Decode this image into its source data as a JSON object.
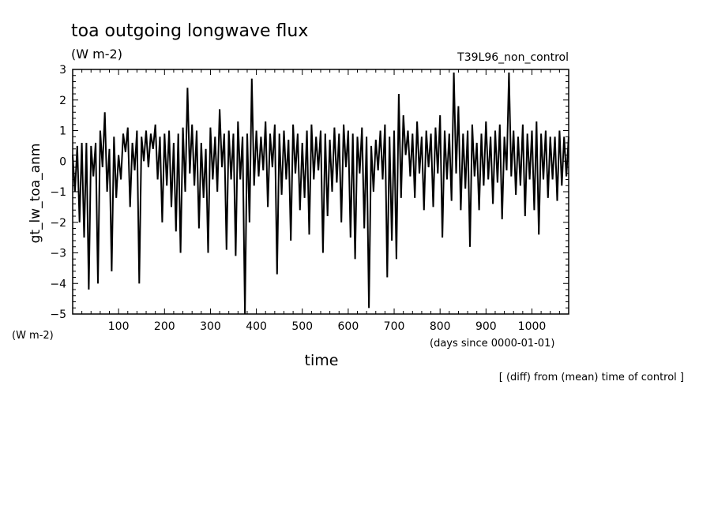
{
  "chart_data": {
    "type": "line",
    "title": "toa outgoing longwave flux",
    "title_units": "(W m-2)",
    "experiment": "T39L96_non_control",
    "ylabel": "gt_lw_toa_anm",
    "yunits": "(W m-2)",
    "xlabel": "time",
    "xunits": "(days since 0000-01-01)",
    "footnote": "[ (diff) from (mean) time of control ]",
    "xlim": [
      0,
      1080
    ],
    "ylim": [
      -5,
      3
    ],
    "xticks": [
      "100",
      "200",
      "300",
      "400",
      "500",
      "600",
      "700",
      "800",
      "900",
      "1000"
    ],
    "yticks": [
      "-5",
      "-4",
      "-3",
      "-2",
      "-1",
      "0",
      "1",
      "2",
      "3"
    ],
    "grid": false,
    "series": [
      {
        "x": [
          0,
          5,
          10,
          15,
          20,
          25,
          30,
          35,
          40,
          45,
          50,
          55,
          60,
          65,
          70,
          75,
          80,
          85,
          90,
          95,
          100,
          105,
          110,
          115,
          120,
          125,
          130,
          135,
          140,
          145,
          150,
          155,
          160,
          165,
          170,
          175,
          180,
          185,
          190,
          195,
          200,
          205,
          210,
          215,
          220,
          225,
          230,
          235,
          240,
          245,
          250,
          255,
          260,
          265,
          270,
          275,
          280,
          285,
          290,
          295,
          300,
          305,
          310,
          315,
          320,
          325,
          330,
          335,
          340,
          345,
          350,
          355,
          360,
          365,
          370,
          375,
          380,
          385,
          390,
          395,
          400,
          405,
          410,
          415,
          420,
          425,
          430,
          435,
          440,
          445,
          450,
          455,
          460,
          465,
          470,
          475,
          480,
          485,
          490,
          495,
          500,
          505,
          510,
          515,
          520,
          525,
          530,
          535,
          540,
          545,
          550,
          555,
          560,
          565,
          570,
          575,
          580,
          585,
          590,
          595,
          600,
          605,
          610,
          615,
          620,
          625,
          630,
          635,
          640,
          645,
          650,
          655,
          660,
          665,
          670,
          675,
          680,
          685,
          690,
          695,
          700,
          705,
          710,
          715,
          720,
          725,
          730,
          735,
          740,
          745,
          750,
          755,
          760,
          765,
          770,
          775,
          780,
          785,
          790,
          795,
          800,
          805,
          810,
          815,
          820,
          825,
          830,
          835,
          840,
          845,
          850,
          855,
          860,
          865,
          870,
          875,
          880,
          885,
          890,
          895,
          900,
          905,
          910,
          915,
          920,
          925,
          930,
          935,
          940,
          945,
          950,
          955,
          960,
          965,
          970,
          975,
          980,
          985,
          990,
          995,
          1000,
          1005,
          1010,
          1015,
          1020,
          1025,
          1030,
          1035,
          1040,
          1045,
          1050,
          1055,
          1060,
          1065,
          1070,
          1075,
          1080
        ],
        "values": [
          0.2,
          -1.0,
          0.5,
          -2.0,
          0.6,
          -2.5,
          0.6,
          -4.2,
          0.5,
          -0.5,
          0.6,
          -4.0,
          1.0,
          -0.2,
          1.6,
          -1.0,
          0.4,
          -3.6,
          0.8,
          -1.2,
          0.2,
          -0.6,
          0.9,
          0.3,
          1.1,
          -1.5,
          0.6,
          -0.3,
          1.0,
          -4.0,
          0.8,
          0.0,
          1.0,
          -0.2,
          0.9,
          0.4,
          1.2,
          -0.6,
          0.8,
          -2.0,
          0.9,
          -0.8,
          1.0,
          -1.5,
          0.6,
          -2.3,
          0.9,
          -3.0,
          1.1,
          -1.0,
          2.4,
          -0.4,
          1.2,
          -0.8,
          1.0,
          -2.2,
          0.6,
          -1.2,
          0.4,
          -3.0,
          1.1,
          -0.6,
          0.8,
          -1.0,
          1.7,
          -0.2,
          0.9,
          -2.9,
          1.0,
          -0.6,
          0.9,
          -3.1,
          1.3,
          -0.6,
          0.8,
          -5.0,
          0.9,
          -2.0,
          2.7,
          -0.8,
          1.0,
          -0.5,
          0.8,
          -0.3,
          1.3,
          -1.5,
          0.9,
          -0.2,
          1.2,
          -3.7,
          0.9,
          -1.1,
          1.0,
          -0.6,
          0.7,
          -2.6,
          1.2,
          -0.4,
          0.9,
          -1.6,
          0.6,
          -1.2,
          1.0,
          -2.4,
          1.2,
          -0.6,
          0.8,
          -0.3,
          1.0,
          -3.0,
          0.9,
          -1.8,
          0.7,
          -1.0,
          1.1,
          -0.7,
          0.9,
          -2.0,
          1.2,
          -0.2,
          1.0,
          -2.5,
          0.9,
          -3.2,
          0.8,
          -0.4,
          1.1,
          -2.2,
          0.8,
          -4.8,
          0.5,
          -1.0,
          0.7,
          -0.3,
          1.0,
          -0.6,
          1.2,
          -3.8,
          0.8,
          -2.6,
          1.0,
          -3.2,
          2.2,
          -1.2,
          1.5,
          0.2,
          1.0,
          -0.5,
          0.9,
          -1.2,
          1.3,
          -0.4,
          0.8,
          -1.6,
          1.0,
          -0.2,
          0.9,
          -1.5,
          1.1,
          -0.4,
          1.5,
          -2.5,
          1.0,
          -0.6,
          0.9,
          -1.3,
          2.9,
          -0.4,
          1.8,
          -1.6,
          0.9,
          -0.9,
          1.0,
          -2.8,
          1.2,
          -0.5,
          0.6,
          -1.6,
          0.9,
          -0.8,
          1.3,
          -0.6,
          0.8,
          -1.4,
          1.0,
          -0.7,
          1.2,
          -1.9,
          0.8,
          -0.3,
          2.9,
          -0.5,
          1.0,
          -1.1,
          0.8,
          -0.8,
          1.2,
          -1.8,
          0.9,
          -0.6,
          1.0,
          -1.6,
          1.3,
          -2.4,
          0.9,
          -0.6,
          1.0,
          -1.2,
          0.8,
          -0.6,
          0.8,
          -1.3,
          1.0,
          -0.8,
          0.8,
          -0.5,
          0.8
        ]
      }
    ]
  }
}
